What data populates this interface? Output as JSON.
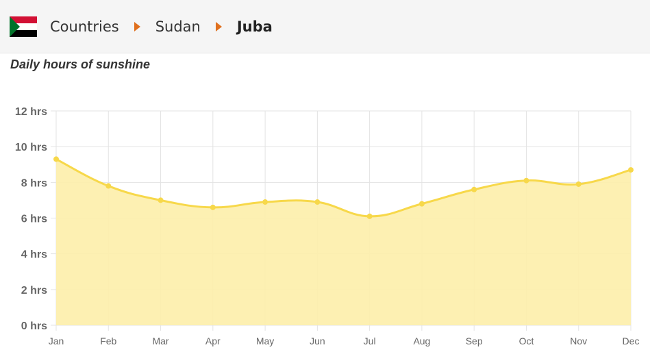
{
  "breadcrumb": {
    "flag_icon": "sudan-flag-icon",
    "items": [
      "Countries",
      "Sudan",
      "Juba"
    ],
    "separator_icon": "triangle-right-icon",
    "separator_color": "#e0701e"
  },
  "colors": {
    "line": "#f7d84a",
    "fill": "#fdeeaa",
    "grid": "#e3e3e3",
    "tick_text": "#666666"
  },
  "chart_data": {
    "type": "area",
    "title": "Daily hours of sunshine",
    "categories": [
      "Jan",
      "Feb",
      "Mar",
      "Apr",
      "May",
      "Jun",
      "Jul",
      "Aug",
      "Sep",
      "Oct",
      "Nov",
      "Dec"
    ],
    "values": [
      9.3,
      7.8,
      7.0,
      6.6,
      6.9,
      6.9,
      6.1,
      6.8,
      7.6,
      8.1,
      7.9,
      8.7
    ],
    "ylim": [
      0,
      12
    ],
    "y_ticks": [
      0,
      2,
      4,
      6,
      8,
      10,
      12
    ],
    "y_tick_labels": [
      "0 hrs",
      "2 hrs",
      "4 hrs",
      "6 hrs",
      "8 hrs",
      "10 hrs",
      "12 hrs"
    ],
    "grid": true,
    "legend": "none",
    "smooth": true
  }
}
